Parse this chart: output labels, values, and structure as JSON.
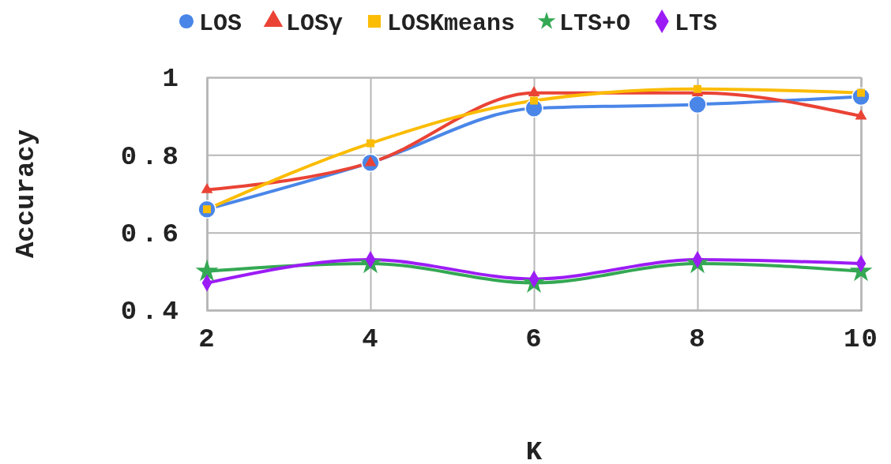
{
  "chart_data": {
    "type": "line",
    "xlabel": "K",
    "ylabel": "Accuracy",
    "x": [
      2,
      4,
      6,
      8,
      10
    ],
    "xlim": [
      2,
      10
    ],
    "xticks": [
      2,
      4,
      6,
      8,
      10
    ],
    "ylim": [
      0.4,
      1
    ],
    "yticks": [
      0.4,
      0.6,
      0.8,
      1
    ],
    "grid": true,
    "legend": "top",
    "line_style": "solid",
    "series": [
      {
        "name": "LOS",
        "color": "#4a86e8",
        "marker": "circle",
        "values": [
          0.66,
          0.78,
          0.92,
          0.93,
          0.95
        ]
      },
      {
        "name": "LOSγ",
        "color": "#ea4335",
        "marker": "triangle",
        "values": [
          0.71,
          0.78,
          0.96,
          0.96,
          0.9
        ]
      },
      {
        "name": "LOSKmeans",
        "color": "#fbbc04",
        "marker": "square",
        "values": [
          0.66,
          0.83,
          0.94,
          0.97,
          0.96
        ]
      },
      {
        "name": "LTS+O",
        "color": "#34a853",
        "marker": "star",
        "values": [
          0.5,
          0.52,
          0.47,
          0.52,
          0.5
        ]
      },
      {
        "name": "LTS",
        "color": "#9c1cf5",
        "marker": "diamond",
        "values": [
          0.47,
          0.53,
          0.48,
          0.53,
          0.52
        ]
      }
    ]
  }
}
